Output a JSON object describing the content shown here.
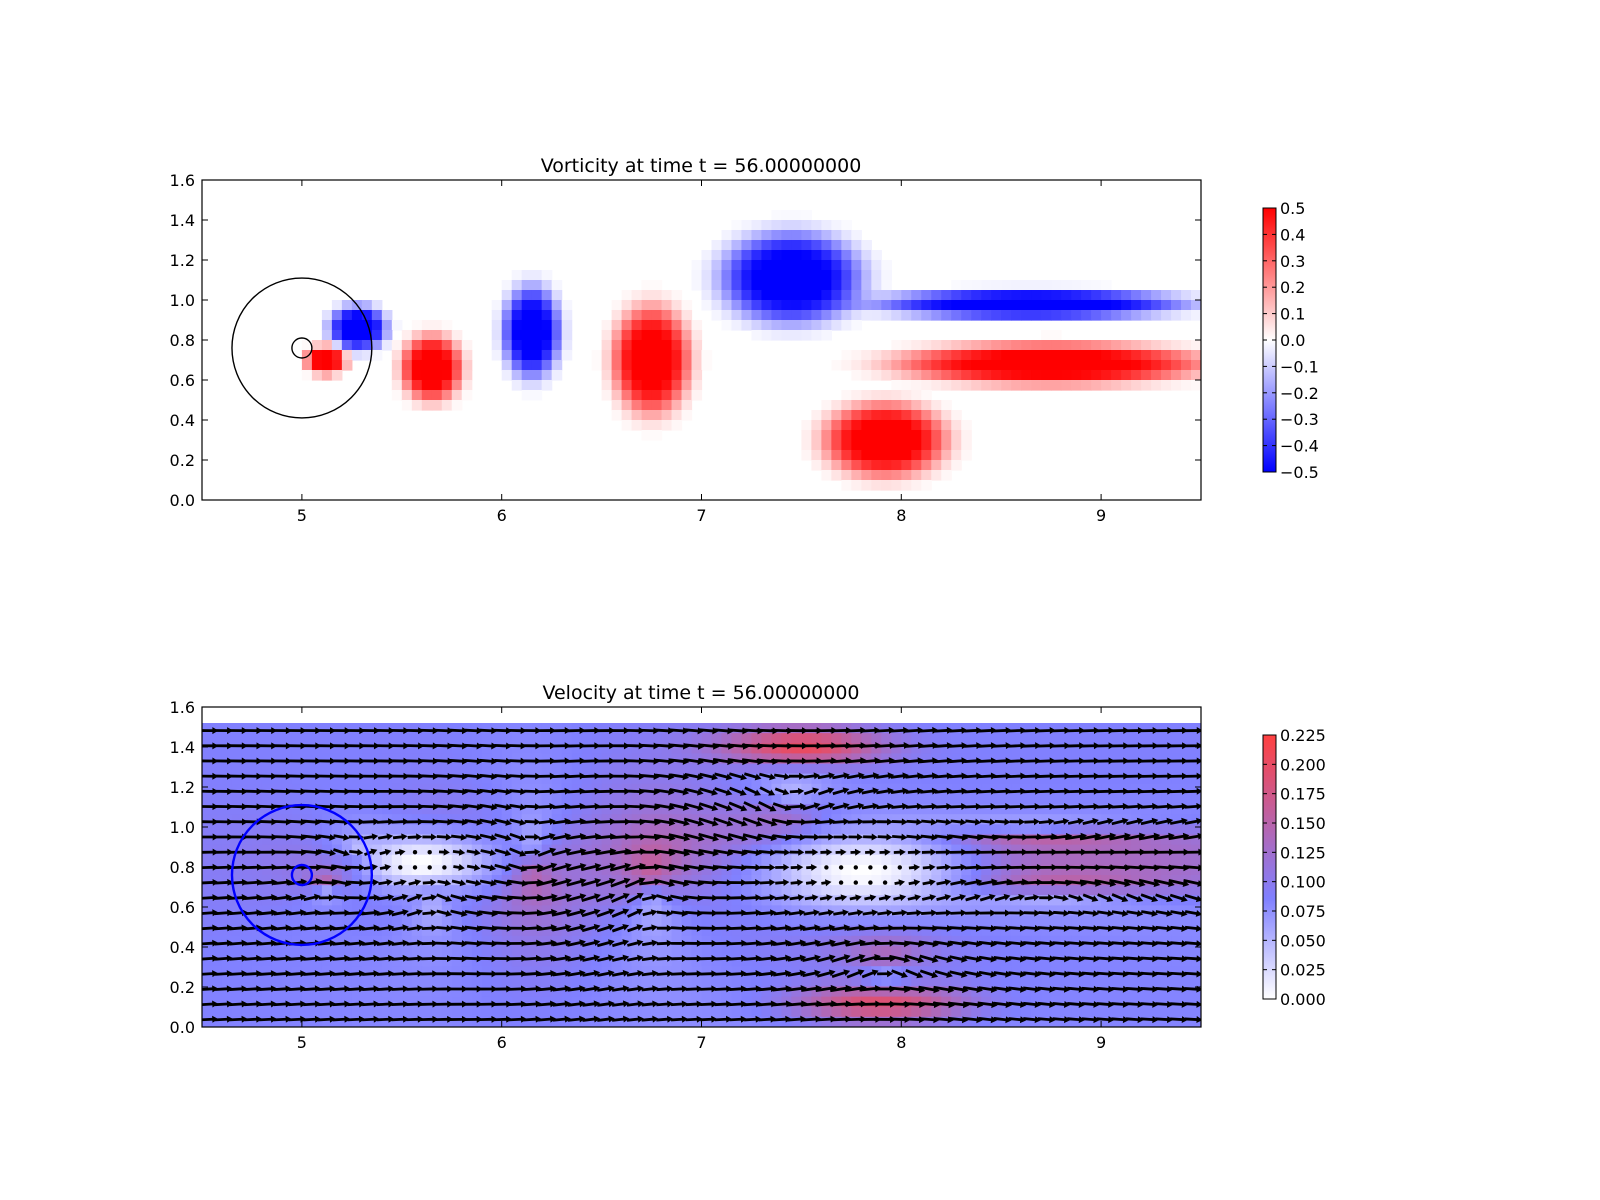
{
  "chart_data": [
    {
      "type": "heatmap",
      "title": "Vorticity at time t =     56.00000000",
      "xlabel": "",
      "ylabel": "",
      "xlim": [
        4.5,
        9.5
      ],
      "ylim": [
        0.0,
        1.6
      ],
      "xticks": [
        5,
        6,
        7,
        8,
        9
      ],
      "yticks": [
        0.0,
        0.2,
        0.4,
        0.6,
        0.8,
        1.0,
        1.2,
        1.4,
        1.6
      ],
      "grid": false,
      "colormap": "bwr",
      "colormap_colors": {
        "low": "#0000ff",
        "mid": "#ffffff",
        "high": "#ff0000"
      },
      "clim": [
        -0.5,
        0.5
      ],
      "colorbar_ticks": [
        "0.5",
        "0.4",
        "0.3",
        "0.2",
        "0.1",
        "0.0",
        "−0.1",
        "−0.2",
        "−0.3",
        "−0.4",
        "−0.5"
      ],
      "circles": [
        {
          "center": [
            5.0,
            0.76
          ],
          "radius": 0.35,
          "color": "#000000"
        },
        {
          "center": [
            5.0,
            0.76
          ],
          "radius": 0.05,
          "color": "#000000"
        }
      ],
      "vortices": [
        {
          "x": 5.28,
          "y": 0.86,
          "sign": -1,
          "rx": 0.14,
          "ry": 0.11
        },
        {
          "x": 5.12,
          "y": 0.7,
          "sign": 1,
          "rx": 0.1,
          "ry": 0.07
        },
        {
          "x": 5.65,
          "y": 0.66,
          "sign": 1,
          "rx": 0.15,
          "ry": 0.16
        },
        {
          "x": 6.15,
          "y": 0.84,
          "sign": -1,
          "rx": 0.14,
          "ry": 0.22
        },
        {
          "x": 6.75,
          "y": 0.7,
          "sign": 1,
          "rx": 0.19,
          "ry": 0.26
        },
        {
          "x": 7.45,
          "y": 1.11,
          "sign": -1,
          "rx": 0.34,
          "ry": 0.22
        },
        {
          "x": 7.92,
          "y": 0.3,
          "sign": 1,
          "rx": 0.3,
          "ry": 0.18
        },
        {
          "x": 8.65,
          "y": 0.98,
          "sign": -1,
          "rx": 0.75,
          "ry": 0.07
        },
        {
          "x": 8.75,
          "y": 0.68,
          "sign": 1,
          "rx": 0.75,
          "ry": 0.1
        }
      ]
    },
    {
      "type": "heatmap",
      "title": "Velocity at time t =     56.00000000",
      "xlabel": "",
      "ylabel": "",
      "xlim": [
        4.5,
        9.5
      ],
      "ylim": [
        0.0,
        1.6
      ],
      "xticks": [
        5,
        6,
        7,
        8,
        9
      ],
      "yticks": [
        0.0,
        0.2,
        0.4,
        0.6,
        0.8,
        1.0,
        1.2,
        1.4,
        1.6
      ],
      "grid": false,
      "field_top": 1.52,
      "overlay": "quiver",
      "colormap": "white-blue-red",
      "colormap_colors": {
        "low": "#ffffff",
        "mid": "#8080ff",
        "high": "#ff4040"
      },
      "clim": [
        0.0,
        0.225
      ],
      "colorbar_ticks": [
        "0.225",
        "0.200",
        "0.175",
        "0.150",
        "0.125",
        "0.100",
        "0.075",
        "0.050",
        "0.025",
        "0.000"
      ],
      "circles": [
        {
          "center": [
            5.0,
            0.76
          ],
          "radius": 0.35,
          "color": "#0000ff"
        },
        {
          "center": [
            5.0,
            0.76
          ],
          "radius": 0.05,
          "color": "#0000ff"
        }
      ]
    }
  ]
}
